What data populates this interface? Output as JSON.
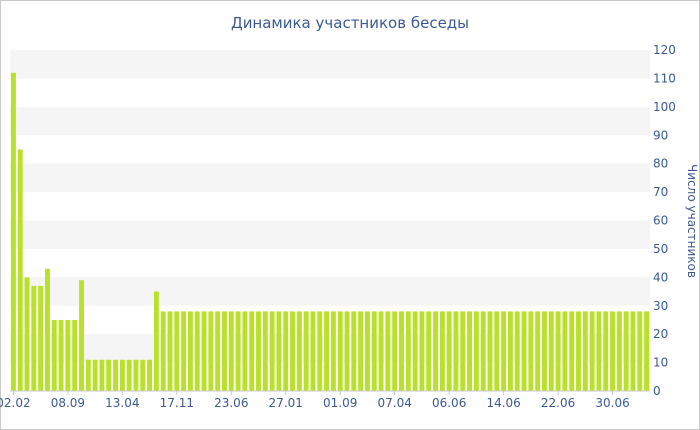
{
  "chart_data": {
    "type": "bar",
    "title": "Динамика участников беседы",
    "ylabel": "Число участников",
    "xlabel": "",
    "ylim": [
      0,
      120
    ],
    "yticks": [
      0,
      10,
      20,
      30,
      40,
      50,
      60,
      70,
      80,
      90,
      100,
      110,
      120
    ],
    "y_axis_side": "right",
    "grid": "alternating horizontal bands",
    "bar_color": "#b9e12a",
    "band_color": "#f5f5f5",
    "text_color": "#3d5a93",
    "x_tick_labels": [
      {
        "index": 0,
        "label": "02.02"
      },
      {
        "index": 8,
        "label": "08.09"
      },
      {
        "index": 16,
        "label": "13.04"
      },
      {
        "index": 24,
        "label": "17.11"
      },
      {
        "index": 32,
        "label": "23.06"
      },
      {
        "index": 40,
        "label": "27.01"
      },
      {
        "index": 48,
        "label": "01.09"
      },
      {
        "index": 56,
        "label": "07.04"
      },
      {
        "index": 64,
        "label": "06.06"
      },
      {
        "index": 72,
        "label": "14.06"
      },
      {
        "index": 80,
        "label": "22.06"
      },
      {
        "index": 88,
        "label": "30.06"
      }
    ],
    "values": [
      112,
      85,
      40,
      37,
      37,
      43,
      25,
      25,
      25,
      25,
      39,
      11,
      11,
      11,
      11,
      11,
      11,
      11,
      11,
      11,
      11,
      35,
      28,
      28,
      28,
      28,
      28,
      28,
      28,
      28,
      28,
      28,
      28,
      28,
      28,
      28,
      28,
      28,
      28,
      28,
      28,
      28,
      28,
      28,
      28,
      28,
      28,
      28,
      28,
      28,
      28,
      28,
      28,
      28,
      28,
      28,
      28,
      28,
      28,
      28,
      28,
      28,
      28,
      28,
      28,
      28,
      28,
      28,
      28,
      28,
      28,
      28,
      28,
      28,
      28,
      28,
      28,
      28,
      28,
      28,
      28,
      28,
      28,
      28,
      28,
      28,
      28,
      28,
      28,
      28,
      28,
      28,
      28,
      28
    ]
  }
}
